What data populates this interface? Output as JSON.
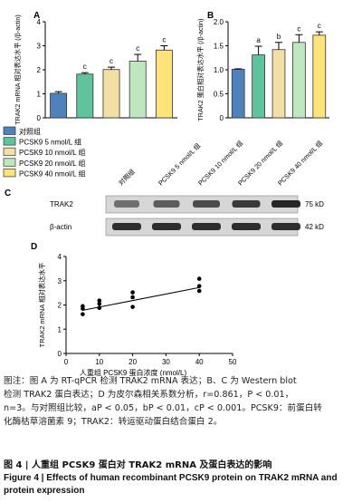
{
  "panels": {
    "A": "A",
    "B": "B",
    "C": "C",
    "D": "D"
  },
  "colors": {
    "control": "#4f81bd",
    "pcsk9_5": "#5fc39e",
    "pcsk9_10": "#f3dfa6",
    "pcsk9_20": "#bfe7bf",
    "pcsk9_40": "#fde47a"
  },
  "legend": {
    "items": [
      {
        "label": "对照组",
        "color": "#4f81bd"
      },
      {
        "label": "PCSK9 5 nmol/L 组",
        "color": "#5fc39e"
      },
      {
        "label": "PCSK9 10 nmol/L 组",
        "color": "#f3dfa6"
      },
      {
        "label": "PCSK9 20 nmol/L 组",
        "color": "#bfe7bf"
      },
      {
        "label": "PCSK9 40 nmol/L 组",
        "color": "#fde47a"
      }
    ]
  },
  "chart_data": [
    {
      "type": "bar",
      "panel": "A",
      "ylabel": "TRAK2 mRNA 相对表达水平 (/β-actin)",
      "ylim": [
        0,
        4
      ],
      "yticks": [
        "0",
        "1",
        "2",
        "3",
        "4"
      ],
      "categories": [
        "对照组",
        "PCSK9 5 nmol/L 组",
        "PCSK9 10 nmol/L 组",
        "PCSK9 20 nmol/L 组",
        "PCSK9 40 nmol/L 组"
      ],
      "values": [
        1.02,
        1.82,
        2.01,
        2.36,
        2.82
      ],
      "errors": [
        0.07,
        0.06,
        0.1,
        0.28,
        0.18
      ],
      "sig": [
        "",
        "c",
        "c",
        "c",
        "c"
      ]
    },
    {
      "type": "bar",
      "panel": "B",
      "ylabel": "TRAK2 蛋白相对表达水平 (/β-actin)",
      "ylim": [
        0,
        2.0
      ],
      "yticks": [
        "0",
        "0.5",
        "1.0",
        "1.5",
        "2.0"
      ],
      "categories": [
        "对照组",
        "PCSK9 5 nmol/L 组",
        "PCSK9 10 nmol/L 组",
        "PCSK9 20 nmol/L 组",
        "PCSK9 40 nmol/L 组"
      ],
      "values": [
        1.01,
        1.31,
        1.42,
        1.57,
        1.72
      ],
      "errors": [
        0.01,
        0.18,
        0.15,
        0.16,
        0.07
      ],
      "sig": [
        "",
        "a",
        "b",
        "c",
        "c"
      ]
    },
    {
      "type": "scatter",
      "panel": "D",
      "xlabel": "人重组 PCSK9 蛋白浓度 (nmol/L)",
      "ylabel": "TRAK2 mRNA 相对表达水平",
      "xlim": [
        0,
        50
      ],
      "ylim": [
        0,
        4
      ],
      "xticks": [
        "0",
        "10",
        "20",
        "30",
        "40",
        "50"
      ],
      "yticks": [
        "0",
        "1",
        "2",
        "3",
        "4"
      ],
      "points": [
        {
          "x": 5,
          "y": 1.62
        },
        {
          "x": 5,
          "y": 1.85
        },
        {
          "x": 5,
          "y": 1.95
        },
        {
          "x": 10,
          "y": 1.88
        },
        {
          "x": 10,
          "y": 2.05
        },
        {
          "x": 10,
          "y": 2.18
        },
        {
          "x": 20,
          "y": 1.92
        },
        {
          "x": 20,
          "y": 2.32
        },
        {
          "x": 20,
          "y": 2.52
        },
        {
          "x": 40,
          "y": 2.58
        },
        {
          "x": 40,
          "y": 2.78
        },
        {
          "x": 40,
          "y": 3.08
        }
      ],
      "fit": {
        "x": [
          5,
          40
        ],
        "y": [
          1.78,
          2.72
        ]
      }
    }
  ],
  "blot": {
    "lanes": [
      "对照组",
      "PCSK9 5 nmol/L 组",
      "PCSK9 10 nmol/L 组",
      "PCSK9 20 nmol/L 组",
      "PCSK9 40 nmol/L 组"
    ],
    "rows": [
      {
        "label": "TRAK2",
        "size": "75 kD"
      },
      {
        "label": "β-actin",
        "size": "42 kD"
      }
    ]
  },
  "caption": {
    "line1": "图注：图 A 为 RT-qPCR 检测 TRAK2 mRNA 表达；B、C 为 Western blot",
    "line2": "检测 TRAK2 蛋白表达；D 为皮尔森相关系数分析，r=0.861，P < 0.01，",
    "line3": "n=3。与对照组比较，aP < 0.05，bP < 0.01，cP < 0.001。PCSK9：前蛋白转",
    "line4": "化酶枯草溶菌素 9；TRAK2：转运驱动蛋白结合蛋白 2。"
  },
  "figure_title_cn": "图 4  |  人重组 PCSK9 蛋白对 TRAK2 mRNA 及蛋白表达的影响",
  "figure_title_en": "Figure 4  |  Effects of human recombinant PCSK9 protein on TRAK2 mRNA and protein expression"
}
